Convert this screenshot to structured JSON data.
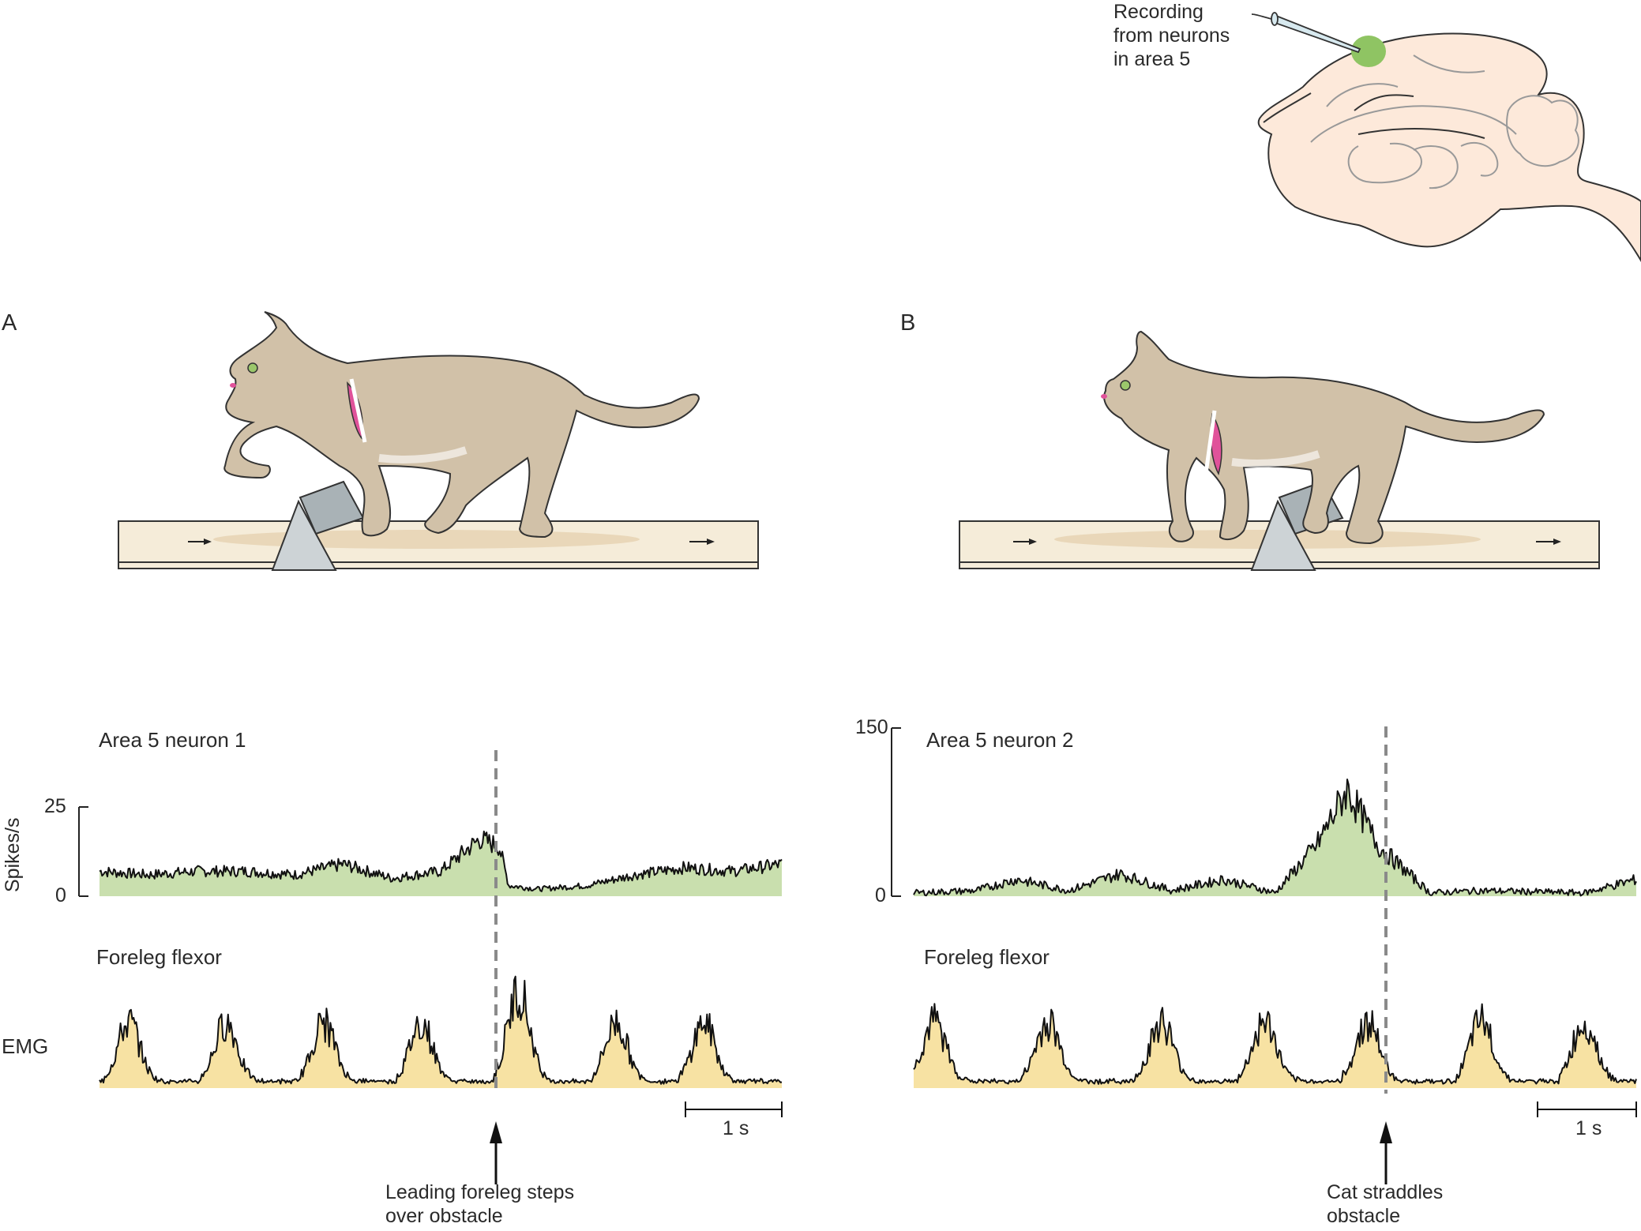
{
  "brain": {
    "label_lines": [
      "Recording",
      "from neurons",
      "in area 5"
    ],
    "colors": {
      "brain_fill": "#fde9da",
      "area5_fill": "#8fc463",
      "outline": "#333333"
    }
  },
  "panels": [
    {
      "letter": "A",
      "neuron_title": "Area 5 neuron 1",
      "ylabel": "Spikes/s",
      "ymax_label": "25",
      "ymin_label": "0",
      "emg_title": "Foreleg flexor",
      "emg_label": "EMG",
      "scale_label": "1 s",
      "caption_lines": [
        "Leading foreleg steps",
        "over obstacle"
      ]
    },
    {
      "letter": "B",
      "neuron_title": "Area 5 neuron 2",
      "ymax_label": "150",
      "ymin_label": "0",
      "emg_title": "Foreleg flexor",
      "scale_label": "1 s",
      "caption_lines": [
        "Cat straddles",
        "obstacle"
      ]
    }
  ],
  "colors": {
    "cat_fill": "#d1c1a8",
    "muscle": "#e0529a",
    "neuron_fill": "#c9dfae",
    "emg_fill": "#f7e2a3",
    "trace": "#111111",
    "dashed": "#8a8a8a",
    "treadmill": "#f5ecd9",
    "obstacle": "#cdd3d6"
  },
  "chart_data": [
    {
      "type": "area",
      "panel": "A",
      "title": "Area 5 neuron 1",
      "ylabel": "Spikes/s",
      "ylim": [
        0,
        25
      ],
      "x_unit": "s",
      "x": [
        0,
        0.5,
        1.0,
        1.5,
        2.0,
        2.5,
        3.0,
        3.5,
        3.9,
        4.1,
        4.2,
        4.5,
        5.0,
        5.5,
        6.0,
        6.5,
        7.0
      ],
      "values": [
        7,
        6,
        7,
        7,
        6,
        9,
        5,
        7,
        16,
        14,
        3,
        2,
        3,
        6,
        8,
        7,
        9
      ],
      "event_x": 4.1
    },
    {
      "type": "area",
      "panel": "A",
      "title": "Foreleg flexor",
      "ylabel": "EMG",
      "x_unit": "s",
      "bursts_at": [
        0.2,
        1.2,
        2.2,
        3.2,
        4.2,
        5.2,
        6.1
      ],
      "event_x": 4.1
    },
    {
      "type": "area",
      "panel": "B",
      "title": "Area 5 neuron 2",
      "ylim": [
        0,
        150
      ],
      "x_unit": "s",
      "x": [
        0,
        0.6,
        1.0,
        1.5,
        2.0,
        2.5,
        3.0,
        3.5,
        3.9,
        4.2,
        4.5,
        5.0,
        5.5,
        6.0,
        6.5,
        7.0
      ],
      "values": [
        3,
        5,
        15,
        5,
        20,
        5,
        15,
        3,
        45,
        95,
        45,
        3,
        5,
        4,
        3,
        15
      ],
      "event_x": 4.8
    },
    {
      "type": "area",
      "panel": "B",
      "title": "Foreleg flexor",
      "x_unit": "s",
      "bursts_at": [
        0.1,
        1.2,
        2.3,
        3.3,
        4.3,
        5.4,
        6.4
      ],
      "event_x": 4.8
    }
  ]
}
